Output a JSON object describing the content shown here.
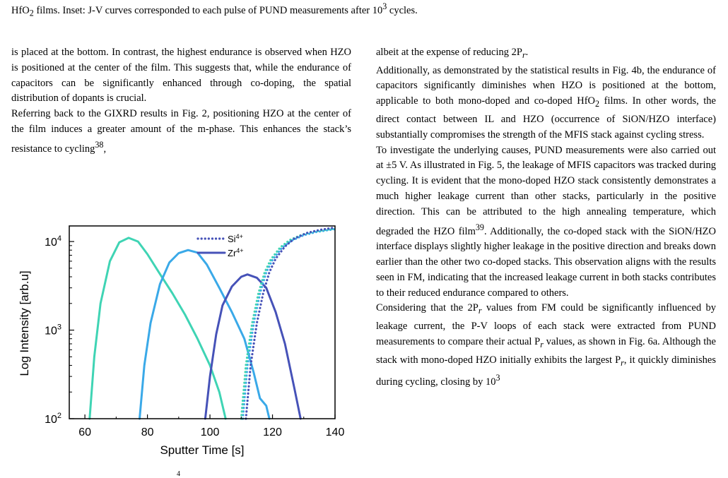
{
  "caption": {
    "part1": "HfO",
    "sub1": "2",
    "part2": " films. Inset: J-V curves corresponded to each pulse of PUND measurements after 10",
    "sup1": "3",
    "part3": " cycles."
  },
  "left_column": {
    "p1": "is placed at the bottom. In contrast, the highest endurance is observed when HZO is positioned at the center of the film. This suggests that, while the endurance of capacitors can be significantly enhanced through co-doping, the spatial distribution of dopants is crucial.",
    "p2a": "Referring back to the GIXRD results in Fig. 2, positioning HZO at the center of the film induces a greater amount of the m-phase. This enhances the stack’s resistance to cycling",
    "p2_ref": "38",
    "p2b": ","
  },
  "right_column": {
    "p1a": "albeit at the expense of reducing 2P",
    "p1_sub": "r",
    "p1b": ".",
    "p2a": "Additionally, as demonstrated by the statistical results in Fig. 4b, the endurance of capacitors significantly diminishes when HZO is positioned at the bottom, applicable to both mono-doped and co-doped HfO",
    "p2_sub": "2",
    "p2b": " films. In other words, the direct contact between IL and HZO (occurrence of SiON/HZO interface) substantially compromises the strength of the MFIS stack against cycling stress.",
    "p3a": "To investigate the underlying causes, PUND measurements were also carried out at ±5 V. As illustrated in Fig. 5, the leakage of MFIS capacitors was tracked during cycling. It is evident that the mono-doped HZO stack consistently demonstrates a much higher leakage current than other stacks, particularly in the positive direction. This can be attributed to the high annealing temperature, which degraded the HZO film",
    "p3_ref": "39",
    "p3b": ". Additionally, the co-doped stack with the SiON/HZO interface displays slightly higher leakage in the positive direction and breaks down earlier than the other two co-doped stacks. This observation aligns with the results seen in FM, indicating that the increased leakage current in both stacks contributes to their reduced endurance compared to others.",
    "p4a": "Considering that the 2P",
    "p4_sub1": "r",
    "p4b": " values from FM could be significantly influenced by leakage current, the P-V loops of each stack were extracted from PUND measurements to compare their actual P",
    "p4_sub2": "r",
    "p4c": " values, as shown in Fig. 6a. Although the stack with mono-doped HZO initially exhibits the largest P",
    "p4_sub3": "r",
    "p4d": ", it quickly diminishes during cycling, closing by 10",
    "p4_sup": "3"
  },
  "chart_data": {
    "type": "line",
    "xlabel": "Sputter Time [s]",
    "ylabel": "Log Intensity [arb.u]",
    "x_ticks": [
      "60",
      "80",
      "100",
      "120",
      "140"
    ],
    "y_ticks": [
      {
        "base": "10",
        "exp": "2"
      },
      {
        "base": "10",
        "exp": "3"
      },
      {
        "base": "10",
        "exp": "4"
      }
    ],
    "xlim": [
      55,
      140
    ],
    "ylim": [
      100,
      15000
    ],
    "yscale": "log",
    "legend_position": "top-right",
    "legend": [
      {
        "base": "Si",
        "sup": "4+",
        "style": "dotted"
      },
      {
        "base": "Zr",
        "sup": "4+",
        "style": "solid"
      }
    ],
    "series": [
      {
        "ion": "Zr",
        "color": "#3fd4b4",
        "dash": "solid",
        "x": [
          61.5,
          63,
          65,
          68,
          71,
          74,
          77,
          80,
          84,
          88,
          92,
          96,
          100,
          103,
          105
        ],
        "y": [
          100,
          500,
          2000,
          6000,
          9800,
          11000,
          10000,
          7200,
          4300,
          2600,
          1500,
          800,
          400,
          200,
          100
        ]
      },
      {
        "ion": "Zr",
        "color": "#3aa9e8",
        "dash": "solid",
        "x": [
          77.5,
          79,
          81,
          84,
          87,
          90,
          93,
          96,
          99,
          103,
          107,
          111,
          114,
          116,
          118,
          119
        ],
        "y": [
          100,
          400,
          1200,
          3300,
          5800,
          7400,
          8000,
          7500,
          5500,
          3000,
          1600,
          800,
          330,
          170,
          140,
          100
        ]
      },
      {
        "ion": "Zr",
        "color": "#4652b8",
        "dash": "solid",
        "x": [
          98.5,
          100,
          102,
          104,
          107,
          110,
          112,
          115,
          118,
          121,
          124,
          127,
          129
        ],
        "y": [
          100,
          300,
          900,
          1900,
          3100,
          4000,
          4250,
          3900,
          3000,
          1600,
          700,
          220,
          100
        ]
      },
      {
        "ion": "Si",
        "color": "#3aa9e8",
        "dash": "dotted",
        "x": [
          110.5,
          112,
          114,
          116,
          118,
          120,
          123,
          126,
          130,
          134,
          138,
          140
        ],
        "y": [
          100,
          400,
          1200,
          2600,
          4500,
          6200,
          8500,
          10200,
          11800,
          12800,
          13500,
          13800
        ]
      },
      {
        "ion": "Si",
        "color": "#3fd4b4",
        "dash": "dotted",
        "x": [
          110,
          111.5,
          113.5,
          115.5,
          117.5,
          119.5,
          122.5,
          125.5,
          129.5,
          133.5,
          137.5,
          140
        ],
        "y": [
          100,
          400,
          1200,
          2600,
          4500,
          6300,
          8600,
          10400,
          12000,
          13000,
          13600,
          14000
        ]
      },
      {
        "ion": "Si",
        "color": "#4652b8",
        "dash": "dotted",
        "x": [
          111.5,
          113,
          115,
          117,
          119,
          121,
          124,
          127,
          131,
          135,
          139,
          140
        ],
        "y": [
          100,
          400,
          1200,
          2600,
          4500,
          6400,
          8800,
          10800,
          12500,
          13500,
          14200,
          14400
        ]
      }
    ]
  },
  "bottom_fragment": "4"
}
